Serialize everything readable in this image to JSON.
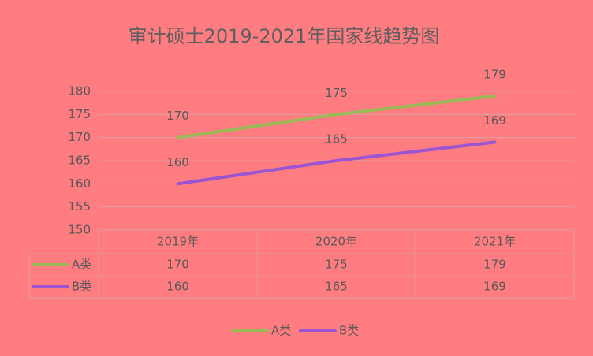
{
  "chart_data": {
    "type": "line",
    "title": "审计硕士2019-2021年国家线趋势图",
    "categories": [
      "2019年",
      "2020年",
      "2021年"
    ],
    "series": [
      {
        "name": "A类",
        "color": "#9bbb59",
        "values": [
          170,
          175,
          179
        ]
      },
      {
        "name": "B类",
        "color": "#9c55d2",
        "values": [
          160,
          165,
          169
        ]
      }
    ],
    "ylim": [
      150,
      180
    ],
    "yticks": [
      150,
      155,
      160,
      165,
      170,
      175,
      180
    ],
    "grid": true,
    "data_labels": true,
    "data_table": true,
    "legend": "bottom"
  }
}
